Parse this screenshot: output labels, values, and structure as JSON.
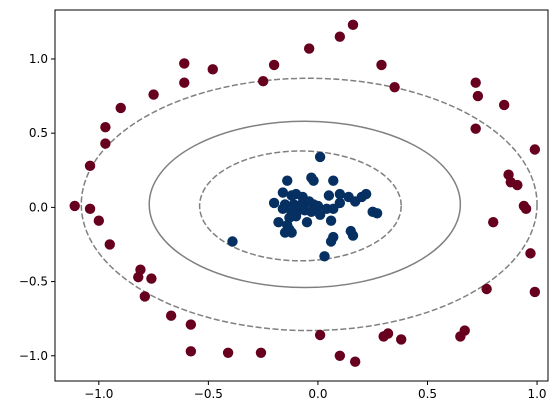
{
  "chart_data": {
    "type": "scatter",
    "title": "",
    "xlabel": "",
    "ylabel": "",
    "xlim": [
      -1.2,
      1.05
    ],
    "ylim": [
      -1.17,
      1.33
    ],
    "x_ticks": [
      {
        "value": -1.0,
        "label": "−1.0"
      },
      {
        "value": -0.5,
        "label": "−0.5"
      },
      {
        "value": 0.0,
        "label": "0.0"
      },
      {
        "value": 0.5,
        "label": "0.5"
      },
      {
        "value": 1.0,
        "label": "1.0"
      }
    ],
    "y_ticks": [
      {
        "value": -1.0,
        "label": "−1.0"
      },
      {
        "value": -0.5,
        "label": "−0.5"
      },
      {
        "value": 0.0,
        "label": "0.0"
      },
      {
        "value": 0.5,
        "label": "0.5"
      },
      {
        "value": 1.0,
        "label": "1.0"
      }
    ],
    "grid": false,
    "colors": {
      "outer_class": "#67001f",
      "inner_class": "#053061",
      "contour": "#808080"
    },
    "contours": [
      {
        "level": -1,
        "style": "dashed",
        "center": [
          -0.04,
          0.02
        ],
        "radii": [
          1.04,
          0.85
        ]
      },
      {
        "level": 0,
        "style": "solid",
        "center": [
          -0.06,
          0.02
        ],
        "radii": [
          0.71,
          0.56
        ]
      },
      {
        "level": 1,
        "style": "dashed",
        "center": [
          -0.08,
          0.01
        ],
        "radii": [
          0.46,
          0.37
        ]
      }
    ],
    "series": [
      {
        "class": "outer",
        "points": [
          [
            0.16,
            1.23
          ],
          [
            0.1,
            1.15
          ],
          [
            -0.04,
            1.07
          ],
          [
            -0.61,
            0.97
          ],
          [
            -0.48,
            0.93
          ],
          [
            -0.2,
            0.96
          ],
          [
            0.29,
            0.96
          ],
          [
            -0.61,
            0.84
          ],
          [
            -0.25,
            0.85
          ],
          [
            0.35,
            0.81
          ],
          [
            -0.75,
            0.76
          ],
          [
            -0.9,
            0.67
          ],
          [
            0.72,
            0.84
          ],
          [
            0.73,
            0.75
          ],
          [
            0.85,
            0.69
          ],
          [
            -0.97,
            0.54
          ],
          [
            -0.97,
            0.43
          ],
          [
            0.72,
            0.53
          ],
          [
            0.99,
            0.39
          ],
          [
            -1.04,
            0.28
          ],
          [
            0.87,
            0.22
          ],
          [
            0.88,
            0.17
          ],
          [
            0.91,
            0.15
          ],
          [
            0.94,
            0.01
          ],
          [
            0.95,
            -0.01
          ],
          [
            -1.11,
            0.01
          ],
          [
            -1.04,
            -0.01
          ],
          [
            -1.0,
            -0.09
          ],
          [
            0.8,
            -0.1
          ],
          [
            -0.95,
            -0.25
          ],
          [
            0.97,
            -0.31
          ],
          [
            -0.81,
            -0.42
          ],
          [
            -0.82,
            -0.47
          ],
          [
            -0.76,
            -0.48
          ],
          [
            0.77,
            -0.55
          ],
          [
            -0.79,
            -0.6
          ],
          [
            0.99,
            -0.57
          ],
          [
            -0.67,
            -0.73
          ],
          [
            -0.58,
            -0.79
          ],
          [
            0.67,
            -0.83
          ],
          [
            0.65,
            -0.87
          ],
          [
            0.01,
            -0.86
          ],
          [
            0.32,
            -0.85
          ],
          [
            0.3,
            -0.87
          ],
          [
            0.38,
            -0.89
          ],
          [
            -0.58,
            -0.97
          ],
          [
            -0.41,
            -0.98
          ],
          [
            -0.26,
            -0.98
          ],
          [
            0.1,
            -1.0
          ],
          [
            0.17,
            -1.04
          ]
        ]
      },
      {
        "class": "inner",
        "points": [
          [
            0.01,
            0.34
          ],
          [
            -0.03,
            0.2
          ],
          [
            -0.02,
            0.18
          ],
          [
            0.07,
            0.18
          ],
          [
            -0.14,
            0.18
          ],
          [
            -0.16,
            0.1
          ],
          [
            -0.12,
            0.08
          ],
          [
            -0.1,
            0.09
          ],
          [
            -0.07,
            0.07
          ],
          [
            0.05,
            0.08
          ],
          [
            0.1,
            0.09
          ],
          [
            0.14,
            0.07
          ],
          [
            0.2,
            0.07
          ],
          [
            0.22,
            0.09
          ],
          [
            -0.2,
            0.03
          ],
          [
            -0.15,
            0.02
          ],
          [
            -0.11,
            0.02
          ],
          [
            -0.07,
            0.03
          ],
          [
            -0.04,
            0.04
          ],
          [
            -0.02,
            0.02
          ],
          [
            0.0,
            0.01
          ],
          [
            0.04,
            -0.01
          ],
          [
            0.07,
            -0.01
          ],
          [
            0.1,
            0.03
          ],
          [
            0.17,
            0.04
          ],
          [
            -0.16,
            -0.01
          ],
          [
            -0.12,
            -0.03
          ],
          [
            -0.09,
            -0.02
          ],
          [
            -0.06,
            -0.02
          ],
          [
            -0.03,
            -0.03
          ],
          [
            -0.1,
            -0.06
          ],
          [
            -0.13,
            -0.07
          ],
          [
            -0.18,
            -0.1
          ],
          [
            -0.14,
            -0.12
          ],
          [
            -0.05,
            -0.1
          ],
          [
            0.06,
            -0.09
          ],
          [
            0.01,
            -0.05
          ],
          [
            0.25,
            -0.03
          ],
          [
            0.27,
            -0.04
          ],
          [
            -0.13,
            -0.15
          ],
          [
            -0.12,
            -0.17
          ],
          [
            -0.15,
            -0.17
          ],
          [
            0.07,
            -0.2
          ],
          [
            0.15,
            -0.16
          ],
          [
            0.16,
            -0.19
          ],
          [
            0.06,
            -0.23
          ],
          [
            -0.39,
            -0.23
          ],
          [
            0.03,
            -0.33
          ]
        ]
      }
    ]
  }
}
